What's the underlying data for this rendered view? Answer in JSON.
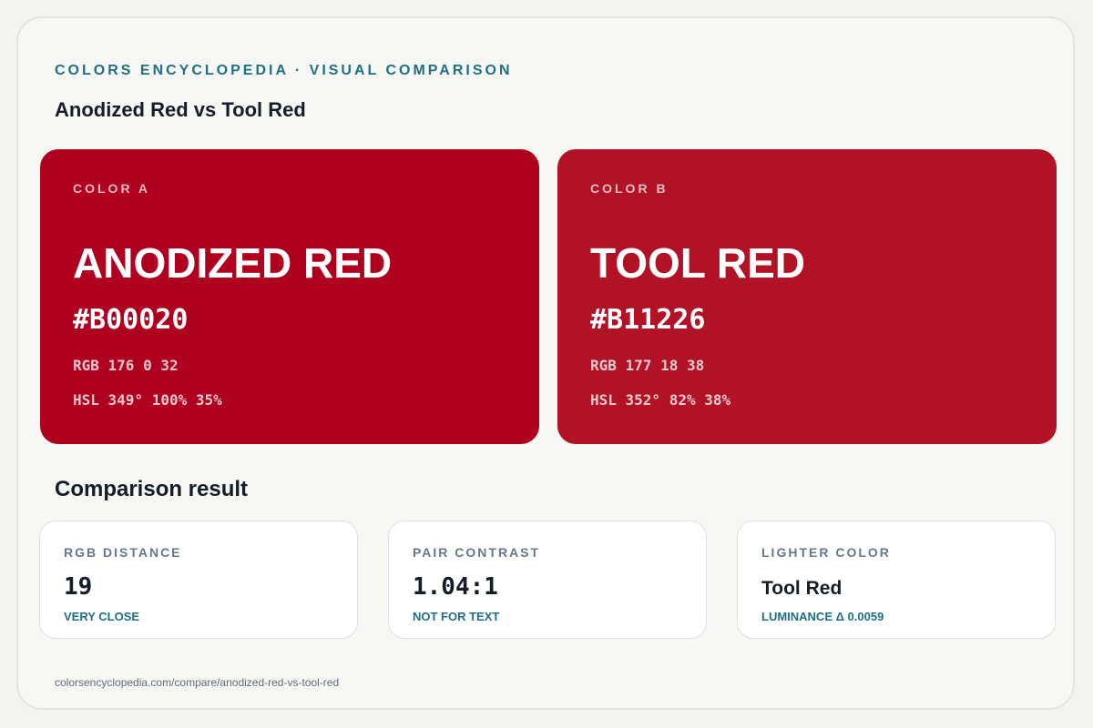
{
  "header": {
    "eyebrow": "COLORS ENCYCLOPEDIA · VISUAL COMPARISON",
    "title": "Anodized Red vs Tool Red"
  },
  "colors": {
    "a": {
      "label": "COLOR A",
      "name": "ANODIZED RED",
      "hex": "#B00020",
      "rgb": "RGB 176 0 32",
      "hsl": "HSL 349° 100% 35%",
      "swatch_color": "#B00020"
    },
    "b": {
      "label": "COLOR B",
      "name": "TOOL RED",
      "hex": "#B11226",
      "rgb": "RGB 177 18 38",
      "hsl": "HSL 352° 82% 38%",
      "swatch_color": "#B11226"
    }
  },
  "comparison": {
    "title": "Comparison result",
    "cards": [
      {
        "label": "RGB DISTANCE",
        "value": "19",
        "note": "VERY CLOSE"
      },
      {
        "label": "PAIR CONTRAST",
        "value": "1.04:1",
        "note": "NOT FOR TEXT"
      },
      {
        "label": "LIGHTER COLOR",
        "value": "Tool Red",
        "note": "LUMINANCE Δ 0.0059"
      }
    ]
  },
  "footer": {
    "url": "colorsencyclopedia.com/compare/anodized-red-vs-tool-red"
  },
  "theme": {
    "accent": "#1d7085",
    "text_dark": "#151d29",
    "muted": "#66788a",
    "background": "#f7f7f3"
  }
}
